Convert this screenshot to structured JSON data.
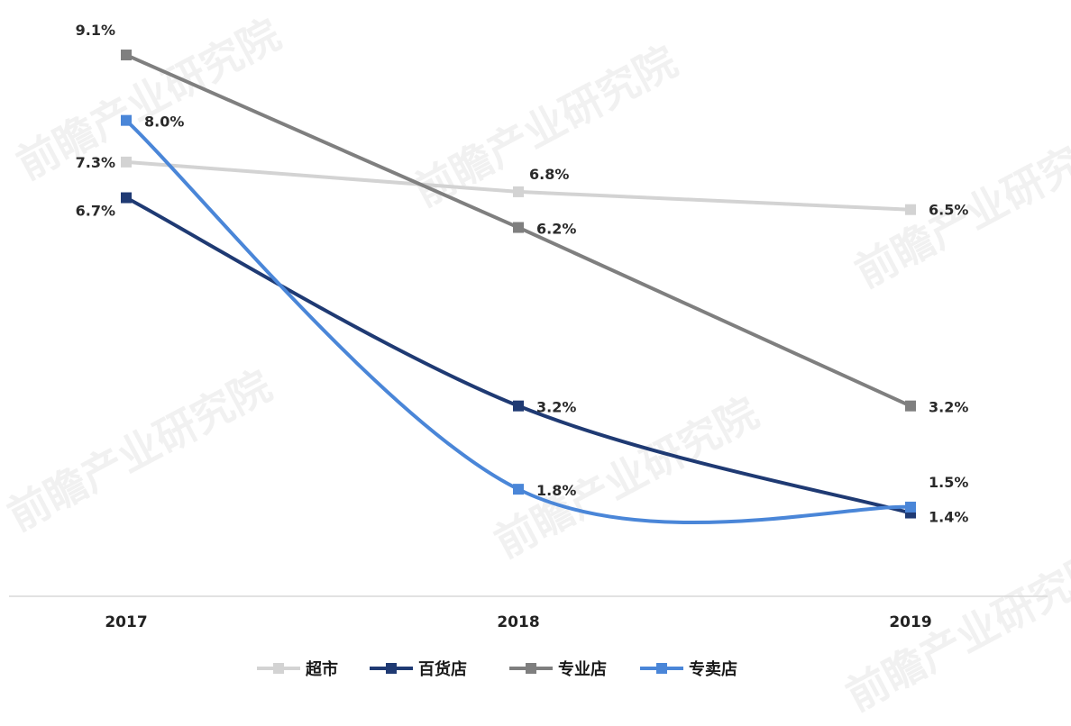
{
  "chart_data": {
    "type": "line",
    "title": "",
    "xlabel": "",
    "ylabel": "",
    "categories": [
      "2017",
      "2018",
      "2019"
    ],
    "value_suffix": "%",
    "ylim": [
      0,
      9.6
    ],
    "grid": false,
    "legend_position": "bottom",
    "series": [
      {
        "name": "超市",
        "values": [
          7.3,
          6.8,
          6.5
        ],
        "color": "#d3d3d3",
        "smooth": false,
        "labels": [
          "7.3%",
          "6.8%",
          "6.5%"
        ]
      },
      {
        "name": "百货店",
        "values": [
          6.7,
          3.2,
          1.4
        ],
        "color": "#1f3a73",
        "smooth": true,
        "labels": [
          "6.7%",
          "3.2%",
          "1.4%"
        ]
      },
      {
        "name": "专业店",
        "values": [
          9.1,
          6.2,
          3.2
        ],
        "color": "#7f7f7f",
        "smooth": false,
        "labels": [
          "9.1%",
          "6.2%",
          "3.2%"
        ]
      },
      {
        "name": "专卖店",
        "values": [
          8.0,
          1.8,
          1.5
        ],
        "color": "#4a86d8",
        "smooth": true,
        "labels": [
          "8.0%",
          "1.8%",
          "1.5%"
        ]
      }
    ]
  },
  "watermark": {
    "text": "前瞻产业研究院"
  }
}
